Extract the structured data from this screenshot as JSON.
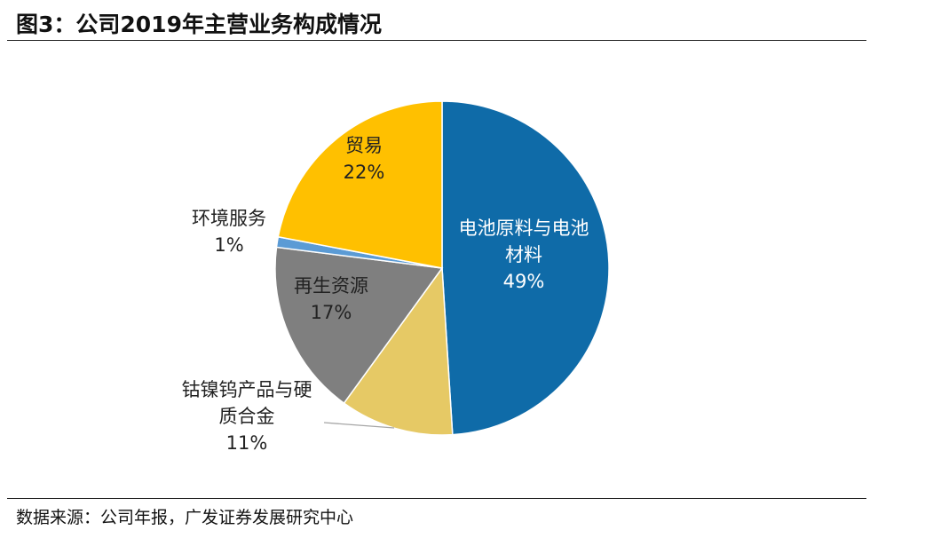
{
  "title": "图3：公司2019年主营业务构成情况",
  "source": "数据来源：公司年报，广发证券发展研究中心",
  "chart_data": {
    "type": "pie",
    "slices": [
      {
        "name_lines": [
          "电池原料与电池",
          "材料"
        ],
        "value": 49,
        "pct": "49%",
        "color": "#0F6BA8",
        "label_color": "#FFFFFF"
      },
      {
        "name_lines": [
          "钴镍钨产品与硬",
          "质合金"
        ],
        "value": 11,
        "pct": "11%",
        "color": "#E6C965",
        "label_color": "#222222"
      },
      {
        "name_lines": [
          "再生资源"
        ],
        "value": 17,
        "pct": "17%",
        "color": "#7F7F7F",
        "label_color": "#222222"
      },
      {
        "name_lines": [
          "环境服务"
        ],
        "value": 1,
        "pct": "1%",
        "color": "#5B9BD5",
        "label_color": "#222222"
      },
      {
        "name_lines": [
          "贸易"
        ],
        "value": 22,
        "pct": "22%",
        "color": "#FFC000",
        "label_color": "#222222"
      }
    ]
  }
}
